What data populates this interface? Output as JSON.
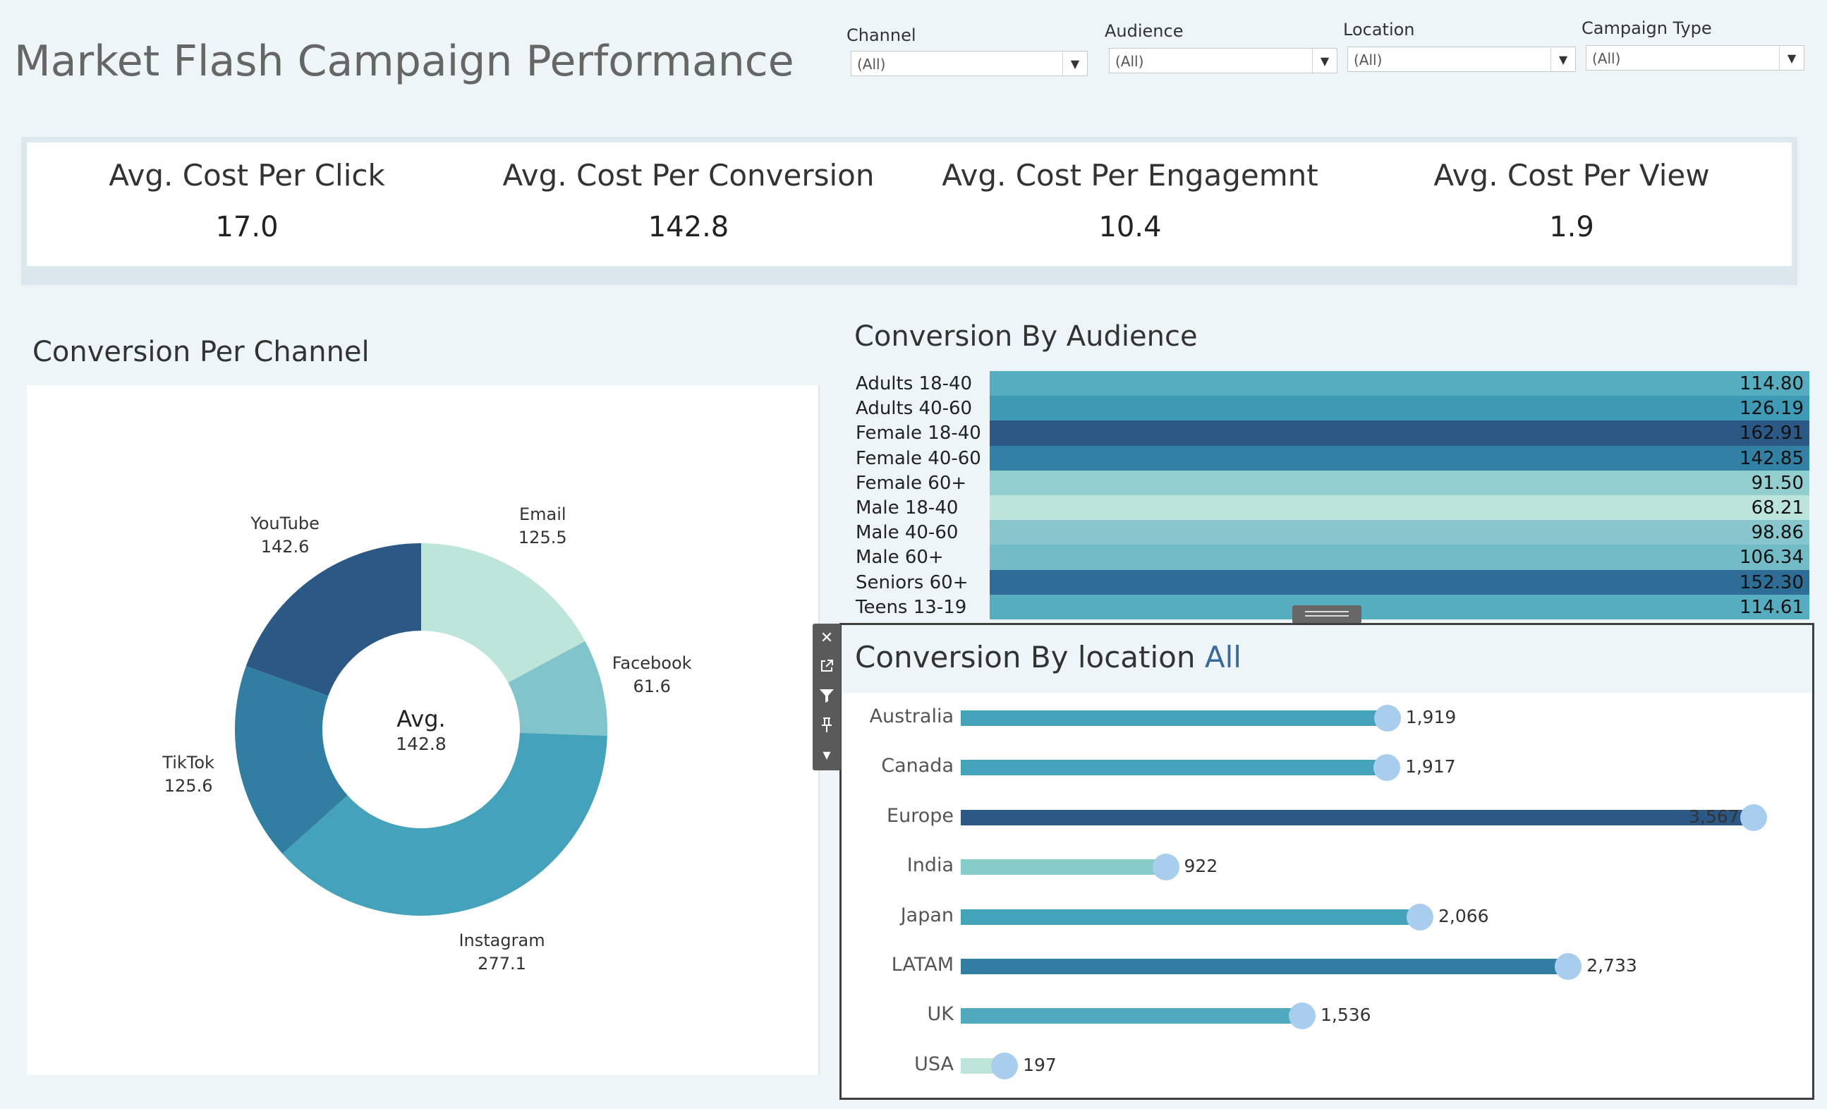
{
  "page": {
    "title": "Market Flash Campaign Performance"
  },
  "filters": [
    {
      "label": "Channel",
      "value": "(All)"
    },
    {
      "label": "Audience",
      "value": "(All)"
    },
    {
      "label": "Location",
      "value": "(All)"
    },
    {
      "label": "Campaign Type",
      "value": "(All)"
    }
  ],
  "kpis": [
    {
      "title": "Avg. Cost Per Click",
      "value": "17.0"
    },
    {
      "title": "Avg. Cost Per Conversion",
      "value": "142.8"
    },
    {
      "title": "Avg. Cost Per Engagemnt",
      "value": "10.4"
    },
    {
      "title": "Avg. Cost Per View",
      "value": "1.9"
    }
  ],
  "chart_data": [
    {
      "type": "pie",
      "title": "Conversion Per Channel",
      "center_label": "Avg.",
      "center_value": "142.8",
      "categories": [
        "Email",
        "Facebook",
        "Instagram",
        "TikTok",
        "YouTube"
      ],
      "values": [
        125.5,
        61.6,
        277.1,
        125.6,
        142.6
      ],
      "colors": [
        "#bde5da",
        "#82c4cb",
        "#44a3bb",
        "#317ea2",
        "#2b5884"
      ]
    },
    {
      "type": "heatmap",
      "title": "Conversion By Audience",
      "categories": [
        "Adults 18-40",
        "Adults 40-60",
        "Female 18-40",
        "Female 40-60",
        "Female 60+",
        "Male 18-40",
        "Male 40-60",
        "Male 60+",
        "Seniors 60+",
        "Teens 13-19"
      ],
      "values": [
        114.8,
        126.19,
        162.91,
        142.85,
        91.5,
        68.21,
        98.86,
        106.34,
        152.3,
        114.61
      ]
    },
    {
      "type": "bar",
      "title": "Conversion By location ",
      "title_accent": "All",
      "categories": [
        "Australia",
        "Canada",
        "Europe",
        "India",
        "Japan",
        "LATAM",
        "UK",
        "USA"
      ],
      "values": [
        1919,
        1917,
        3567,
        922,
        2066,
        2733,
        1536,
        197
      ],
      "value_labels": [
        "1,919",
        "1,917",
        "3,567",
        "922",
        "2,066",
        "2,733",
        "1,536",
        "197"
      ]
    }
  ]
}
